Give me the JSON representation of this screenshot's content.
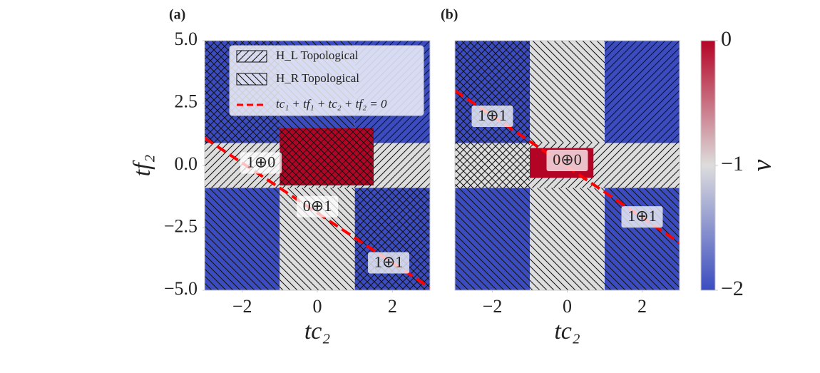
{
  "chart_data": [
    {
      "type": "heatmap",
      "panel_label": "(a)",
      "xlabel": "tc₂",
      "ylabel": "tf₂",
      "xlim": [
        -3,
        3
      ],
      "ylim": [
        -5,
        5
      ],
      "xticks": [
        {
          "value": -2,
          "label": "−2"
        },
        0,
        2
      ],
      "yticks": [
        {
          "value": 5,
          "label": "5.0"
        },
        {
          "value": 2.5,
          "label": "2.5"
        },
        {
          "value": 0,
          "label": "0.0"
        },
        {
          "value": -2.5,
          "label": "−2.5"
        },
        {
          "value": -5,
          "label": "−5.0"
        }
      ],
      "regions": [
        {
          "x": [
            -3,
            -1
          ],
          "y": [
            0.9,
            5
          ],
          "value": -2,
          "hatch": "x"
        },
        {
          "x": [
            -1,
            1
          ],
          "y": [
            0.9,
            5
          ],
          "value": -2,
          "hatch": "\\"
        },
        {
          "x": [
            1,
            3
          ],
          "y": [
            0.9,
            5
          ],
          "value": -2,
          "hatch": "/"
        },
        {
          "x": [
            -3,
            -1
          ],
          "y": [
            -0.9,
            0.9
          ],
          "value": -1,
          "hatch": "/"
        },
        {
          "x": [
            -1,
            1
          ],
          "y": [
            -0.9,
            0.9
          ],
          "value": -1,
          "hatch": "/"
        },
        {
          "x": [
            1,
            3
          ],
          "y": [
            -0.9,
            0.9
          ],
          "value": -1,
          "hatch": "/"
        },
        {
          "x": [
            -1,
            1.5
          ],
          "y": [
            -0.8,
            1.5
          ],
          "value": 0,
          "hatch": "x"
        },
        {
          "x": [
            -3,
            -1
          ],
          "y": [
            -5,
            -0.9
          ],
          "value": -2,
          "hatch": "\\"
        },
        {
          "x": [
            -1,
            1
          ],
          "y": [
            -5,
            -0.9
          ],
          "value": -1,
          "hatch": "\\"
        },
        {
          "x": [
            1,
            3
          ],
          "y": [
            -5,
            -0.9
          ],
          "value": -2,
          "hatch": "x"
        }
      ],
      "lines": [
        {
          "name": "tc₁ + tf₁ + tc₂ + tf₂ = 0",
          "color": "#ff0000",
          "x": [
            -3,
            3
          ],
          "y": [
            1.1,
            -4.9
          ]
        }
      ],
      "legend_hatches": [
        {
          "name": "H_L Topological",
          "hatch": "/"
        },
        {
          "name": "H_R Topological",
          "hatch": "\\"
        }
      ],
      "annotations": [
        {
          "text": "1⊕0",
          "x": -1.5,
          "y": 0.1
        },
        {
          "text": "0⊕1",
          "x": 0,
          "y": -1.65
        },
        {
          "text": "1⊕1",
          "x": 1.9,
          "y": -3.9
        }
      ]
    },
    {
      "type": "heatmap",
      "panel_label": "(b)",
      "xlabel": "tc₂",
      "xlim": [
        -3,
        3
      ],
      "ylim": [
        -5,
        5
      ],
      "xticks": [
        {
          "value": -2,
          "label": "−2"
        },
        0,
        2
      ],
      "regions": [
        {
          "x": [
            -3,
            -1
          ],
          "y": [
            0.9,
            5
          ],
          "value": -2,
          "hatch": "x"
        },
        {
          "x": [
            -1,
            1
          ],
          "y": [
            0.9,
            5
          ],
          "value": -1,
          "hatch": "\\"
        },
        {
          "x": [
            1,
            3
          ],
          "y": [
            0.9,
            5
          ],
          "value": -2,
          "hatch": "/"
        },
        {
          "x": [
            -3,
            -1
          ],
          "y": [
            -0.9,
            0.9
          ],
          "value": -1,
          "hatch": "x"
        },
        {
          "x": [
            -1,
            1
          ],
          "y": [
            -0.9,
            0.9
          ],
          "value": -1,
          "hatch": "/"
        },
        {
          "x": [
            1,
            3
          ],
          "y": [
            -0.9,
            0.9
          ],
          "value": -1,
          "hatch": "/"
        },
        {
          "x": [
            -1,
            0.7
          ],
          "y": [
            -0.5,
            0.7
          ],
          "value": 0,
          "hatch": ""
        },
        {
          "x": [
            -3,
            -1
          ],
          "y": [
            -5,
            -0.9
          ],
          "value": -2,
          "hatch": "\\"
        },
        {
          "x": [
            -1,
            1
          ],
          "y": [
            -5,
            -0.9
          ],
          "value": -1,
          "hatch": "\\"
        },
        {
          "x": [
            1,
            3
          ],
          "y": [
            -5,
            -0.9
          ],
          "value": -2,
          "hatch": "\\"
        }
      ],
      "lines": [
        {
          "color": "#ff0000",
          "x": [
            -3,
            3
          ],
          "y": [
            3.0,
            -3.1
          ]
        }
      ],
      "annotations": [
        {
          "text": "1⊕1",
          "x": -2,
          "y": 1.97
        },
        {
          "text": "0⊕0",
          "x": 0,
          "y": 0.2
        },
        {
          "text": "1⊕1",
          "x": 2,
          "y": -2.06
        }
      ]
    }
  ],
  "colorbar": {
    "label": "ν",
    "lim": [
      -2,
      0
    ],
    "ticks": [
      {
        "value": 0,
        "label": "0"
      },
      {
        "value": -1,
        "label": "−1"
      },
      {
        "value": -2,
        "label": "−2"
      }
    ],
    "colors": [
      "#3b4cc0",
      "#dddddd",
      "#b40426"
    ]
  }
}
